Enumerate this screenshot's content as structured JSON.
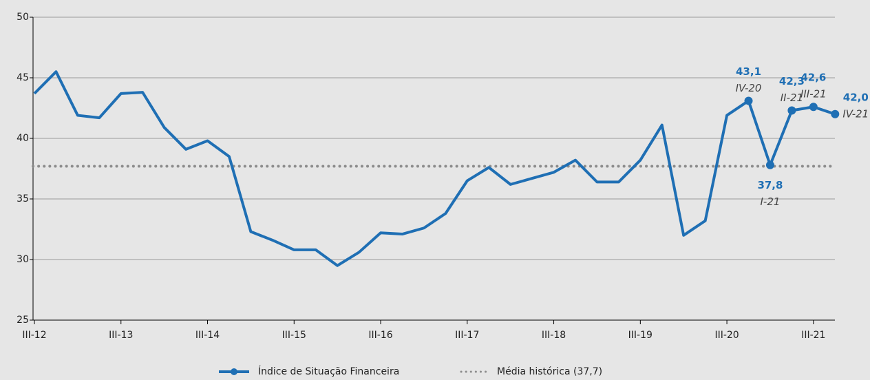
{
  "chart_data": {
    "type": "line",
    "categories": [
      "III-12",
      null,
      null,
      null,
      "III-13",
      null,
      null,
      null,
      "III-14",
      null,
      null,
      null,
      "III-15",
      null,
      null,
      null,
      "III-16",
      null,
      null,
      null,
      "III-17",
      null,
      null,
      null,
      "III-18",
      null,
      null,
      null,
      "III-19",
      null,
      null,
      null,
      "III-20",
      null,
      null,
      null,
      "III-21",
      null
    ],
    "series": [
      {
        "name": "Índice de Situação Financeira",
        "color": "#1f6fb4",
        "values": [
          43.7,
          45.5,
          41.9,
          41.7,
          43.7,
          43.8,
          40.9,
          39.1,
          39.8,
          38.5,
          32.3,
          31.6,
          30.8,
          30.8,
          29.5,
          30.6,
          32.2,
          32.1,
          32.6,
          33.8,
          36.5,
          37.6,
          36.2,
          36.7,
          37.2,
          38.2,
          36.4,
          36.4,
          38.2,
          41.1,
          32.0,
          33.2,
          41.9,
          43.1,
          37.8,
          42.3,
          42.6,
          42.0
        ],
        "value_labels": [
          null,
          null,
          null,
          null,
          null,
          null,
          null,
          null,
          null,
          null,
          null,
          null,
          null,
          null,
          null,
          null,
          null,
          null,
          null,
          null,
          null,
          null,
          null,
          null,
          null,
          null,
          null,
          null,
          null,
          null,
          null,
          null,
          null,
          "43,1",
          "37,8",
          "42,3",
          "42,6",
          "42,0"
        ],
        "point_labels": [
          null,
          null,
          null,
          null,
          null,
          null,
          null,
          null,
          null,
          null,
          null,
          null,
          null,
          null,
          null,
          null,
          null,
          null,
          null,
          null,
          null,
          null,
          null,
          null,
          null,
          null,
          null,
          null,
          null,
          null,
          null,
          null,
          null,
          "IV-20",
          "I-21",
          "II-21",
          "III-21",
          "IV-21"
        ]
      }
    ],
    "reference_line": {
      "name": "Média histórica (37,7)",
      "value": 37.7,
      "color": "#8c8c8c"
    },
    "ylim": [
      25,
      50
    ],
    "yticks": [
      25,
      30,
      35,
      40,
      45,
      50
    ],
    "grid": true,
    "legend": "bottom"
  }
}
